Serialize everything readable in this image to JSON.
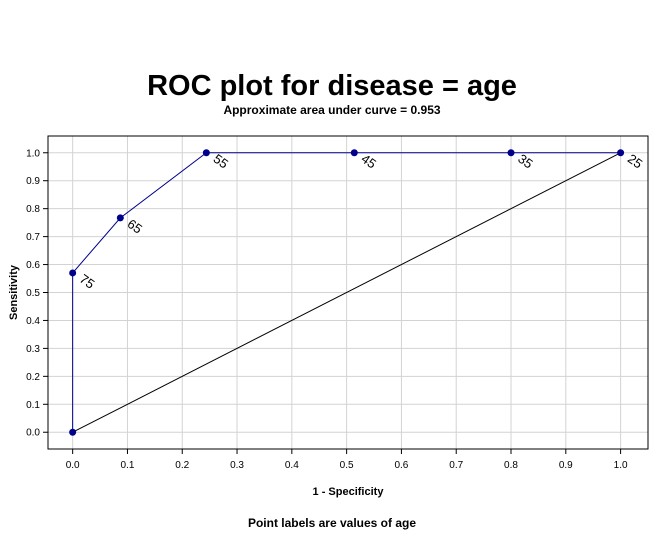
{
  "title": "ROC plot for disease = age",
  "subtitle": "Approximate area under curve = 0.953",
  "footnote": "Point labels are values of age",
  "colors": {
    "curve": "#00008b",
    "point": "#00008b",
    "reference": "#000000",
    "grid": "#d3d3d3",
    "frame": "#000000"
  },
  "chart_data": {
    "type": "line",
    "xlabel": "1 - Specificity",
    "ylabel": "Sensitivity",
    "xlim": [
      -0.045,
      1.05
    ],
    "ylim": [
      -0.06,
      1.06
    ],
    "xticks": [
      0.0,
      0.1,
      0.2,
      0.3,
      0.4,
      0.5,
      0.6,
      0.7,
      0.8,
      0.9,
      1.0
    ],
    "yticks": [
      0.0,
      0.1,
      0.2,
      0.3,
      0.4,
      0.5,
      0.6,
      0.7,
      0.8,
      0.9,
      1.0
    ],
    "xtick_labels": [
      "0.0",
      "0.1",
      "0.2",
      "0.3",
      "0.4",
      "0.5",
      "0.6",
      "0.7",
      "0.8",
      "0.9",
      "1.0"
    ],
    "ytick_labels": [
      "0.0",
      "0.1",
      "0.2",
      "0.3",
      "0.4",
      "0.5",
      "0.6",
      "0.7",
      "0.8",
      "0.9",
      "1.0"
    ],
    "grid": true,
    "points": [
      {
        "x": 0.0,
        "y": 0.0,
        "label": ""
      },
      {
        "x": 0.0,
        "y": 0.57,
        "label": "75"
      },
      {
        "x": 0.087,
        "y": 0.767,
        "label": "65"
      },
      {
        "x": 0.244,
        "y": 1.0,
        "label": "55"
      },
      {
        "x": 0.514,
        "y": 1.0,
        "label": "45"
      },
      {
        "x": 0.8,
        "y": 1.0,
        "label": "35"
      },
      {
        "x": 1.0,
        "y": 1.0,
        "label": "25"
      }
    ],
    "reference_line": [
      [
        0,
        0
      ],
      [
        1,
        1
      ]
    ]
  }
}
